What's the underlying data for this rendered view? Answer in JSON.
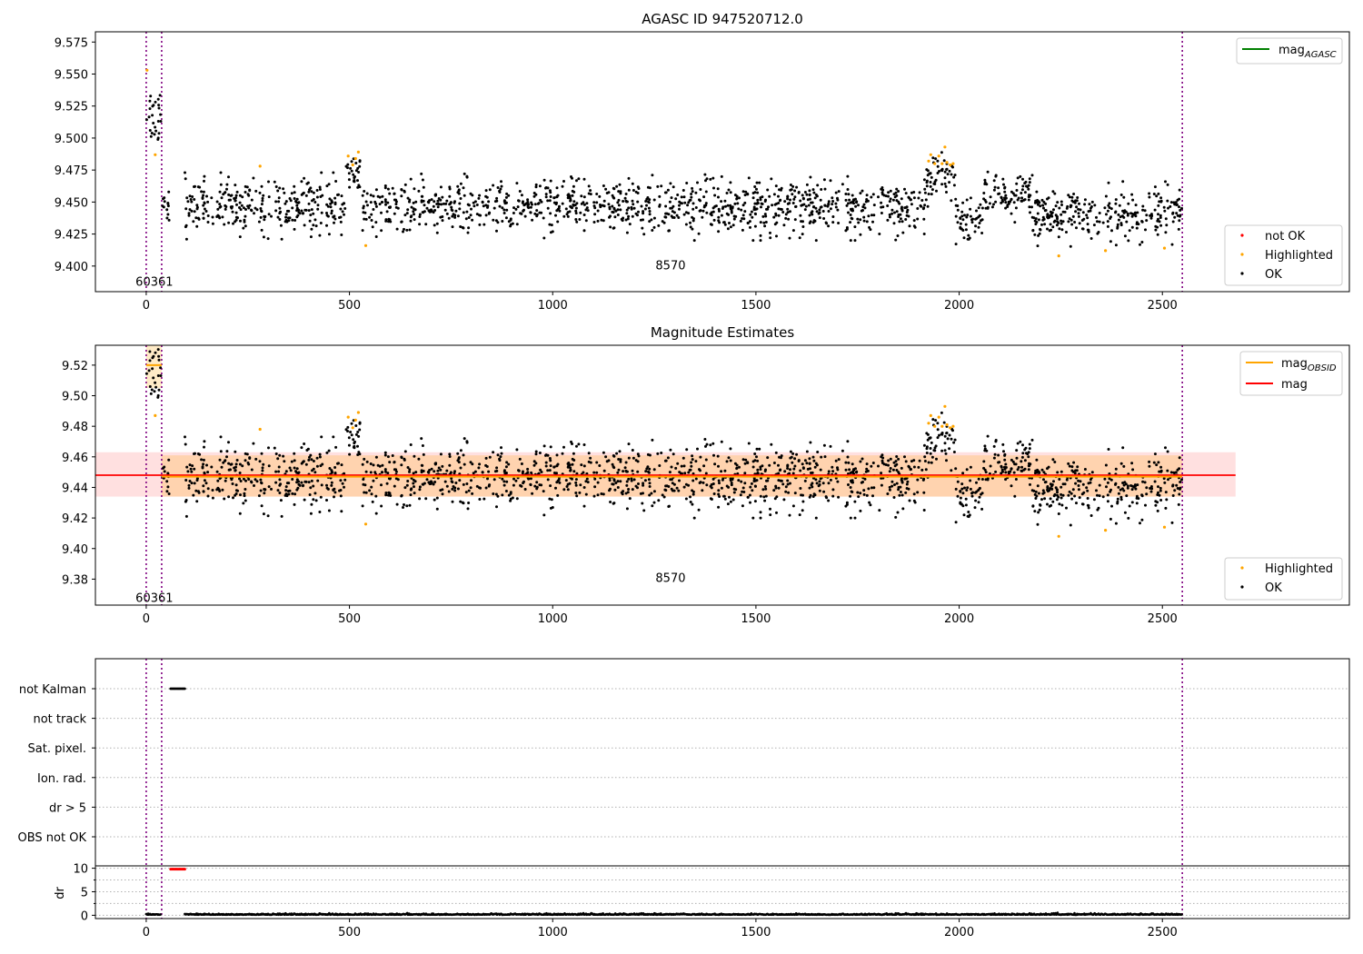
{
  "chart_data": [
    {
      "type": "scatter",
      "title": "AGASC ID 947520712.0",
      "xlim": [
        -125,
        2960
      ],
      "ylim": [
        9.38,
        9.583
      ],
      "x_ticks": [
        0,
        500,
        1000,
        1500,
        2000,
        2500
      ],
      "y_ticks": [
        9.4,
        9.425,
        9.45,
        9.475,
        9.5,
        9.525,
        9.55,
        9.575
      ],
      "y_tick_decimals": 3,
      "obs_boundaries": [
        0,
        38,
        2549
      ],
      "obs_labels": [
        {
          "text": "60361",
          "x": 20,
          "y": 9.388
        },
        {
          "text": "8570",
          "x": 1290,
          "y": 9.401
        }
      ],
      "legends": [
        {
          "position": "top-right",
          "entries": [
            {
              "label": "mag",
              "sub": "AGASC",
              "kind": "line",
              "color": "#008000"
            }
          ]
        },
        {
          "position": "bottom-right",
          "entries": [
            {
              "label": "not OK",
              "kind": "point",
              "color": "#ff0000"
            },
            {
              "label": "Highlighted",
              "kind": "point",
              "color": "#ffa500"
            },
            {
              "label": "OK",
              "kind": "point",
              "color": "#000000"
            }
          ]
        }
      ],
      "series": [
        {
          "name": "OK",
          "color": "#000000",
          "segments": [
            {
              "x_range": [
                1,
                36
              ],
              "mean": 9.518,
              "spread": 0.012
            },
            {
              "x_range": [
                40,
                57
              ],
              "mean": 9.45,
              "spread": 0.008
            },
            {
              "x_range": [
                95,
                490
              ],
              "mean": 9.447,
              "spread": 0.01
            },
            {
              "x_range": [
                492,
                528
              ],
              "mean": 9.47,
              "spread": 0.008
            },
            {
              "x_range": [
                530,
                1920
              ],
              "mean": 9.446,
              "spread": 0.01
            },
            {
              "x_range": [
                1920,
                1990
              ],
              "mean": 9.47,
              "spread": 0.009
            },
            {
              "x_range": [
                1990,
                2060
              ],
              "mean": 9.438,
              "spread": 0.008
            },
            {
              "x_range": [
                2060,
                2180
              ],
              "mean": 9.455,
              "spread": 0.008
            },
            {
              "x_range": [
                2180,
                2548
              ],
              "mean": 9.44,
              "spread": 0.01
            }
          ]
        },
        {
          "name": "Highlighted",
          "color": "#ffa500",
          "points": [
            [
              2,
              9.553
            ],
            [
              22,
              9.487
            ],
            [
              280,
              9.478
            ],
            [
              497,
              9.486
            ],
            [
              508,
              9.479
            ],
            [
              515,
              9.484
            ],
            [
              522,
              9.489
            ],
            [
              540,
              9.416
            ],
            [
              1925,
              9.482
            ],
            [
              1930,
              9.487
            ],
            [
              1940,
              9.48
            ],
            [
              1950,
              9.486
            ],
            [
              1958,
              9.48
            ],
            [
              1965,
              9.493
            ],
            [
              1970,
              9.481
            ],
            [
              1978,
              9.479
            ],
            [
              1985,
              9.48
            ],
            [
              2245,
              9.408
            ],
            [
              2360,
              9.412
            ],
            [
              2505,
              9.414
            ]
          ]
        }
      ]
    },
    {
      "type": "scatter",
      "title": "Magnitude Estimates",
      "xlim": [
        -125,
        2960
      ],
      "ylim": [
        9.363,
        9.533
      ],
      "x_ticks": [
        0,
        500,
        1000,
        1500,
        2000,
        2500
      ],
      "y_ticks": [
        9.38,
        9.4,
        9.42,
        9.44,
        9.46,
        9.48,
        9.5,
        9.52
      ],
      "y_tick_decimals": 2,
      "obs_boundaries": [
        0,
        38,
        2549
      ],
      "obs_labels": [
        {
          "text": "60361",
          "x": 20,
          "y": 9.368
        },
        {
          "text": "8570",
          "x": 1290,
          "y": 9.381
        }
      ],
      "mag": 9.448,
      "mag_band": [
        9.434,
        9.463
      ],
      "mag_band_x": [
        -125,
        2680
      ],
      "mag_obsid": [
        {
          "x_range": [
            0,
            38
          ],
          "value": 9.52,
          "band": [
            9.505,
            9.535
          ]
        },
        {
          "x_range": [
            38,
            2549
          ],
          "value": 9.447,
          "band": [
            9.434,
            9.461
          ]
        }
      ],
      "legends": [
        {
          "position": "top-right",
          "entries": [
            {
              "label": "mag",
              "sub": "OBSID",
              "kind": "line",
              "color": "#ffa500"
            },
            {
              "label": "mag",
              "kind": "line",
              "color": "#ff0000"
            }
          ]
        },
        {
          "position": "bottom-right",
          "entries": [
            {
              "label": "Highlighted",
              "kind": "point",
              "color": "#ffa500"
            },
            {
              "label": "OK",
              "kind": "point",
              "color": "#000000"
            }
          ]
        }
      ]
    },
    {
      "type": "scatter",
      "title": "",
      "xlim": [
        -125,
        2960
      ],
      "x_ticks": [
        0,
        500,
        1000,
        1500,
        2000,
        2500
      ],
      "flag_categories": [
        "not Kalman",
        "not track",
        "Sat. pixel.",
        "Ion. rad.",
        "dr > 5",
        "OBS not OK"
      ],
      "flags": [
        {
          "category": "not Kalman",
          "x_range": [
            60,
            95
          ],
          "color": "#000000"
        }
      ],
      "obs_boundaries": [
        0,
        38,
        2549
      ],
      "dr": {
        "ylabel": "dr",
        "ylim": [
          -0.7,
          10.5
        ],
        "y_ticks": [
          0,
          5,
          10
        ],
        "minor_y_ticks": [
          2.5,
          7.5
        ],
        "high_points": {
          "x_range": [
            60,
            95
          ],
          "value": 9.8,
          "color": "#ff0000"
        },
        "baseline_segments": [
          [
            0,
            36
          ],
          [
            95,
            2548
          ]
        ],
        "baseline_value": 0.1
      }
    }
  ]
}
